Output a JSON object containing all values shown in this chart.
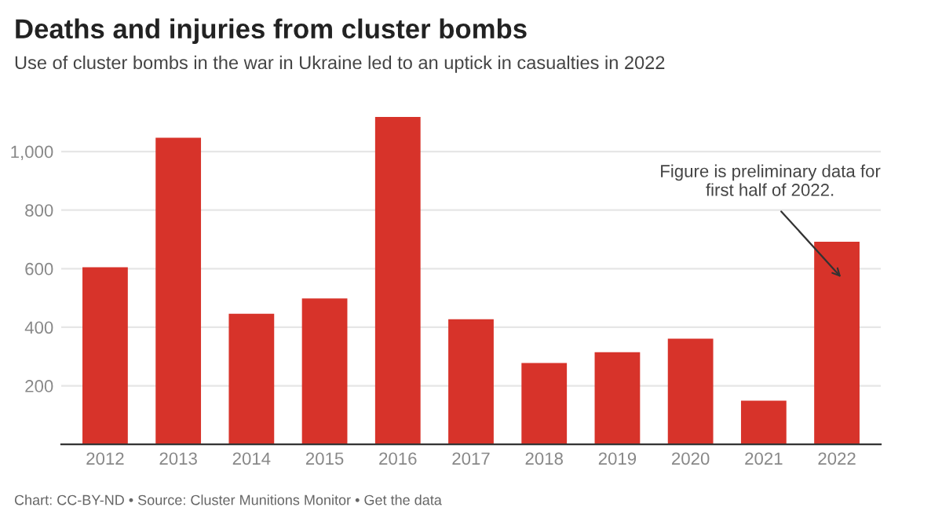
{
  "chart_data": {
    "type": "bar",
    "title": "Deaths and injuries from cluster bombs",
    "subtitle": "Use of cluster bombs in the war in Ukraine led to an uptick in casualties in 2022",
    "categories": [
      "2012",
      "2013",
      "2014",
      "2015",
      "2016",
      "2017",
      "2018",
      "2019",
      "2020",
      "2021",
      "2022"
    ],
    "values": [
      605,
      1047,
      446,
      498,
      1118,
      427,
      278,
      315,
      361,
      149,
      692
    ],
    "color": "#d7332a",
    "ylim": [
      0,
      1120
    ],
    "yticks": [
      200,
      400,
      600,
      800,
      {
        "value": 1000,
        "label": "1,000"
      }
    ],
    "grid": "y",
    "annotations": [
      "Figure is preliminary data for\nfirst half of 2022.",
      "Chart: CC-BY-ND • Source: Cluster Munitions Monitor • Get the data"
    ]
  }
}
